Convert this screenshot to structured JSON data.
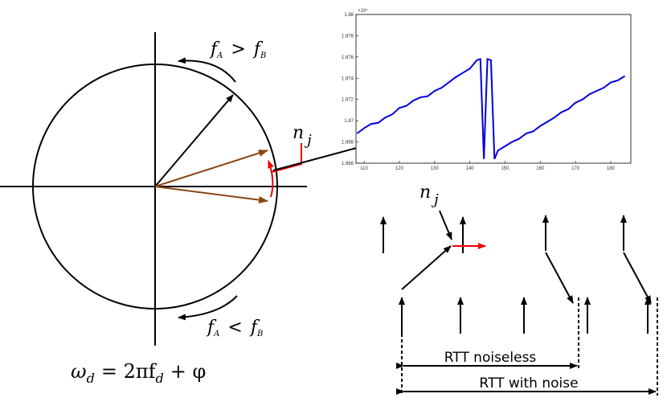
{
  "freq_top": {
    "f1": "f",
    "s1": "A",
    "op": ">",
    "f2": "f",
    "s2": "B"
  },
  "freq_bottom": {
    "f1": "f",
    "s1": "A",
    "op": "<",
    "f2": "f",
    "s2": "B"
  },
  "noise_left": {
    "n": "n",
    "j": "j"
  },
  "noise_right": {
    "n": "n",
    "j": "j"
  },
  "omega": {
    "w": "ω",
    "d1": "d",
    "mid": "= 2πf",
    "d2": "d",
    "end": "+ φ"
  },
  "rtt_noiseless": "RTT noiseless",
  "rtt_with_noise": "RTT with noise",
  "chart_data": {
    "type": "line",
    "y_multiplier": "×10⁴",
    "x": [
      108,
      110,
      112,
      114,
      116,
      118,
      120,
      122,
      124,
      126,
      128,
      130,
      132,
      134,
      136,
      138,
      140,
      142,
      143,
      144,
      145,
      146,
      147,
      148,
      150,
      152,
      154,
      156,
      158,
      160,
      162,
      164,
      166,
      168,
      170,
      172,
      174,
      176,
      178,
      180,
      182,
      184
    ],
    "series": [
      {
        "color": "#0000e0",
        "values": [
          1.8688,
          1.8693,
          1.8697,
          1.8698,
          1.8703,
          1.8706,
          1.8712,
          1.8714,
          1.8719,
          1.8722,
          1.8723,
          1.8728,
          1.8731,
          1.8736,
          1.8741,
          1.8745,
          1.8749,
          1.8757,
          1.8758,
          1.8664,
          1.8758,
          1.8757,
          1.8664,
          1.8672,
          1.8676,
          1.868,
          1.8683,
          1.8688,
          1.869,
          1.8695,
          1.8699,
          1.8703,
          1.8708,
          1.8711,
          1.8717,
          1.872,
          1.8725,
          1.8728,
          1.8731,
          1.8736,
          1.8738,
          1.8742
        ]
      }
    ],
    "xlim": [
      107.7,
      185.7
    ],
    "xticks": [
      110,
      120,
      130,
      140,
      150,
      160,
      170,
      180
    ],
    "ylim": [
      1.866,
      1.88
    ],
    "yticks": [
      1.866,
      1.868,
      1.87,
      1.872,
      1.874,
      1.876,
      1.878,
      1.88
    ]
  }
}
